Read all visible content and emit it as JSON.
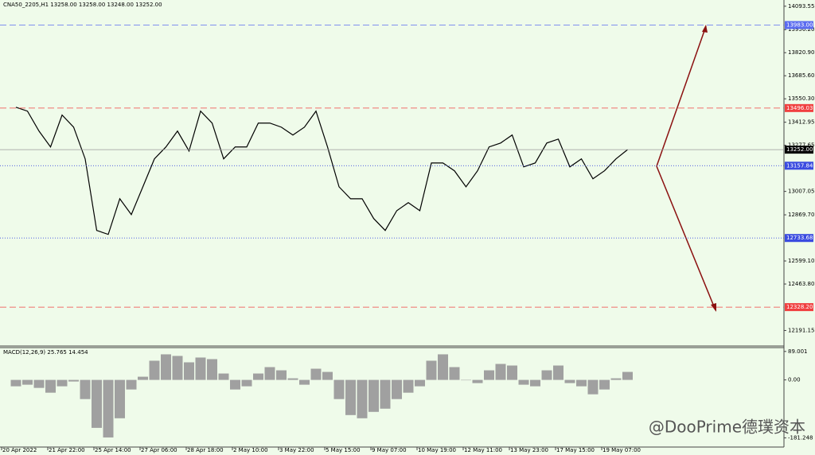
{
  "chart_data": [
    {
      "type": "line",
      "title": "CNA50_2205,H1  13258.00 13258.00 13248.00 13252.00",
      "categories": [
        "20 Apr 2022",
        null,
        null,
        null,
        "21 Apr 22:00",
        null,
        null,
        null,
        "25 Apr 14:00",
        null,
        null,
        null,
        "27 Apr 06:00",
        null,
        null,
        null,
        "28 Apr 18:00",
        null,
        null,
        null,
        "2 May 10:00",
        null,
        null,
        null,
        "3 May 22:00",
        null,
        null,
        null,
        "5 May 15:00",
        null,
        null,
        null,
        "9 May 07:00",
        null,
        null,
        null,
        "10 May 19:00",
        null,
        null,
        null,
        "12 May 11:00",
        null,
        null,
        null,
        "13 May 23:00",
        null,
        null,
        null,
        "17 May 15:00",
        null,
        null,
        null,
        "19 May 07:00",
        null,
        null,
        null,
        null,
        null,
        null,
        null,
        null,
        null,
        null,
        null,
        null,
        null,
        null
      ],
      "values": [
        13501,
        13478,
        13361,
        13268,
        13455,
        13384,
        13198,
        12778,
        12755,
        12964,
        12871,
        13034,
        13198,
        13268,
        13361,
        13244,
        13478,
        13408,
        13198,
        13268,
        13268,
        13408,
        13408,
        13384,
        13338,
        13384,
        13478,
        13268,
        13034,
        12964,
        12964,
        12848,
        12778,
        12894,
        12941,
        12894,
        13174,
        13174,
        13128,
        13034,
        13128,
        13268,
        13291,
        13338,
        13151,
        13174,
        13291,
        13314,
        13151,
        13198,
        13081,
        13128,
        13198,
        13252,
        null,
        null,
        null,
        null,
        null,
        null,
        null,
        null,
        null,
        null,
        null,
        null,
        null
      ],
      "color": "#000000",
      "ylim": [
        12100,
        14130
      ],
      "yticks": [
        14093.55,
        {
          "value": 13956.2,
          "label": "13956.20"
        },
        {
          "value": 13820.9,
          "label": "13820.90"
        },
        {
          "value": 13685.6,
          "label": "13685.60"
        },
        {
          "value": 13550.3,
          "label": "13550.30"
        },
        13412.95,
        13277.65,
        13007.05,
        {
          "value": 12869.7,
          "label": "12869.70"
        },
        {
          "value": 12599.1,
          "label": "12599.10"
        },
        {
          "value": 12463.8,
          "label": "12463.80"
        },
        12191.15
      ],
      "levels": [
        {
          "value": 13983,
          "label": "13983.00",
          "color": "#5b6cf0"
        },
        {
          "value": 13496.03,
          "label": "13496.03",
          "color": "#f04040"
        },
        {
          "value": 13252,
          "label": "13252.00",
          "color": "#000000"
        },
        {
          "value": 13157.84,
          "label": "13157.84",
          "color": "#3a4be0"
        },
        {
          "value": 12733.68,
          "label": "12733.68",
          "color": "#3a4be0"
        },
        {
          "value": 12328.2,
          "label": "12328.20",
          "color": "#f04040"
        }
      ],
      "grid": false
    },
    {
      "type": "bar",
      "title": "MACD(12,26,9) 25.765 14.454",
      "values": [
        -20,
        -15,
        -25,
        -40,
        -20,
        -5,
        -60,
        -150,
        -180,
        -120,
        -30,
        10,
        60,
        80,
        75,
        55,
        70,
        65,
        20,
        -30,
        -20,
        20,
        40,
        30,
        5,
        -15,
        35,
        25,
        -60,
        -110,
        -120,
        -100,
        -90,
        -60,
        -40,
        -20,
        60,
        80,
        40,
        0,
        -10,
        30,
        50,
        45,
        -15,
        -20,
        30,
        45,
        -10,
        -20,
        -45,
        -30,
        5,
        25
      ],
      "color": "#a0a0a0",
      "ylim": [
        -210,
        101
      ],
      "yticks": [
        89.001,
        {
          "value": 0,
          "label": "0.00"
        },
        -181.248
      ]
    }
  ],
  "watermark": "@DooPrime德璞资本"
}
